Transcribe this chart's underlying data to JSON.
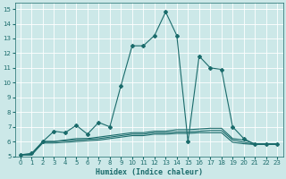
{
  "xlabel": "Humidex (Indice chaleur)",
  "ylabel": "",
  "xlim": [
    -0.5,
    23.5
  ],
  "ylim": [
    5,
    15.4
  ],
  "yticks": [
    5,
    6,
    7,
    8,
    9,
    10,
    11,
    12,
    13,
    14,
    15
  ],
  "xticks": [
    0,
    1,
    2,
    3,
    4,
    5,
    6,
    7,
    8,
    9,
    10,
    11,
    12,
    13,
    14,
    15,
    16,
    17,
    18,
    19,
    20,
    21,
    22,
    23
  ],
  "background_color": "#cce8e8",
  "grid_color": "#ffffff",
  "line_color": "#1a6b6b",
  "series": [
    {
      "x": [
        0,
        1,
        2,
        3,
        4,
        5,
        6,
        7,
        8,
        9,
        10,
        11,
        12,
        13,
        14,
        15,
        16,
        17,
        18,
        19,
        20,
        21,
        22,
        23
      ],
      "y": [
        5.1,
        5.2,
        6.0,
        6.7,
        6.6,
        7.1,
        6.5,
        7.3,
        7.0,
        9.8,
        12.5,
        12.5,
        13.2,
        14.8,
        13.2,
        6.0,
        11.8,
        11.0,
        10.9,
        7.0,
        6.2,
        5.8,
        5.8,
        5.8
      ],
      "marker": "D",
      "markersize": 2.0,
      "linewidth": 0.8,
      "has_marker": true
    },
    {
      "x": [
        0,
        1,
        2,
        3,
        4,
        5,
        6,
        7,
        8,
        9,
        10,
        11,
        12,
        13,
        14,
        15,
        16,
        17,
        18,
        19,
        20,
        21,
        22,
        23
      ],
      "y": [
        5.1,
        5.1,
        6.0,
        6.0,
        6.1,
        6.2,
        6.2,
        6.3,
        6.4,
        6.5,
        6.6,
        6.6,
        6.7,
        6.7,
        6.8,
        6.8,
        6.85,
        6.9,
        6.9,
        6.2,
        6.1,
        5.85,
        5.85,
        5.85
      ],
      "marker": null,
      "markersize": 0,
      "linewidth": 0.8,
      "has_marker": false
    },
    {
      "x": [
        0,
        1,
        2,
        3,
        4,
        5,
        6,
        7,
        8,
        9,
        10,
        11,
        12,
        13,
        14,
        15,
        16,
        17,
        18,
        19,
        20,
        21,
        22,
        23
      ],
      "y": [
        5.1,
        5.1,
        6.0,
        6.0,
        6.05,
        6.1,
        6.15,
        6.2,
        6.3,
        6.4,
        6.5,
        6.5,
        6.6,
        6.6,
        6.65,
        6.65,
        6.7,
        6.75,
        6.75,
        6.1,
        5.95,
        5.8,
        5.8,
        5.8
      ],
      "marker": null,
      "markersize": 0,
      "linewidth": 0.8,
      "has_marker": false
    },
    {
      "x": [
        0,
        1,
        2,
        3,
        4,
        5,
        6,
        7,
        8,
        9,
        10,
        11,
        12,
        13,
        14,
        15,
        16,
        17,
        18,
        19,
        20,
        21,
        22,
        23
      ],
      "y": [
        5.1,
        5.1,
        5.9,
        5.9,
        5.95,
        6.0,
        6.05,
        6.1,
        6.2,
        6.3,
        6.4,
        6.4,
        6.5,
        6.5,
        6.55,
        6.55,
        6.6,
        6.6,
        6.6,
        5.95,
        5.85,
        5.8,
        5.8,
        5.8
      ],
      "marker": null,
      "markersize": 0,
      "linewidth": 0.8,
      "has_marker": false
    }
  ]
}
